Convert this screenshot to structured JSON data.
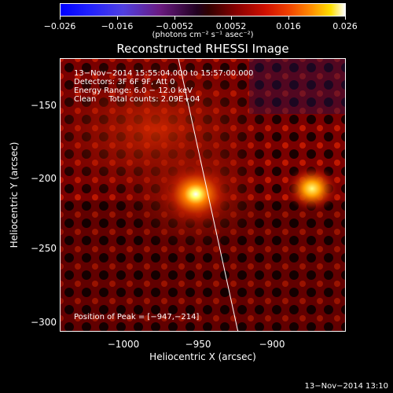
{
  "colorbar": {
    "tick_labels": [
      "−0.026",
      "−0.016",
      "−0.0052",
      "0.0052",
      "0.016",
      "0.026"
    ],
    "units": "(photons cm⁻² s⁻¹ asec⁻²)"
  },
  "title": "Reconstructed RHESSI Image",
  "info": {
    "time_range": "13−Nov−2014 15:55:04.000 to 15:57:00.000",
    "detectors": "Detectors: 3F 6F 9F, Att 0",
    "energy": "Energy Range: 6.0 − 12.0 keV",
    "method": "Clean     Total counts: 2.09E+04"
  },
  "peak": "Position of Peak = [−947,−214]",
  "axes": {
    "xlabel": "Heliocentric X (arcsec)",
    "ylabel": "Heliocentric Y (arcsec)",
    "x_ticks": [
      "−1000",
      "−950",
      "−900"
    ],
    "y_ticks": [
      "−150",
      "−200",
      "−250",
      "−300"
    ]
  },
  "timestamp": "13−Nov−2014 13:10"
}
